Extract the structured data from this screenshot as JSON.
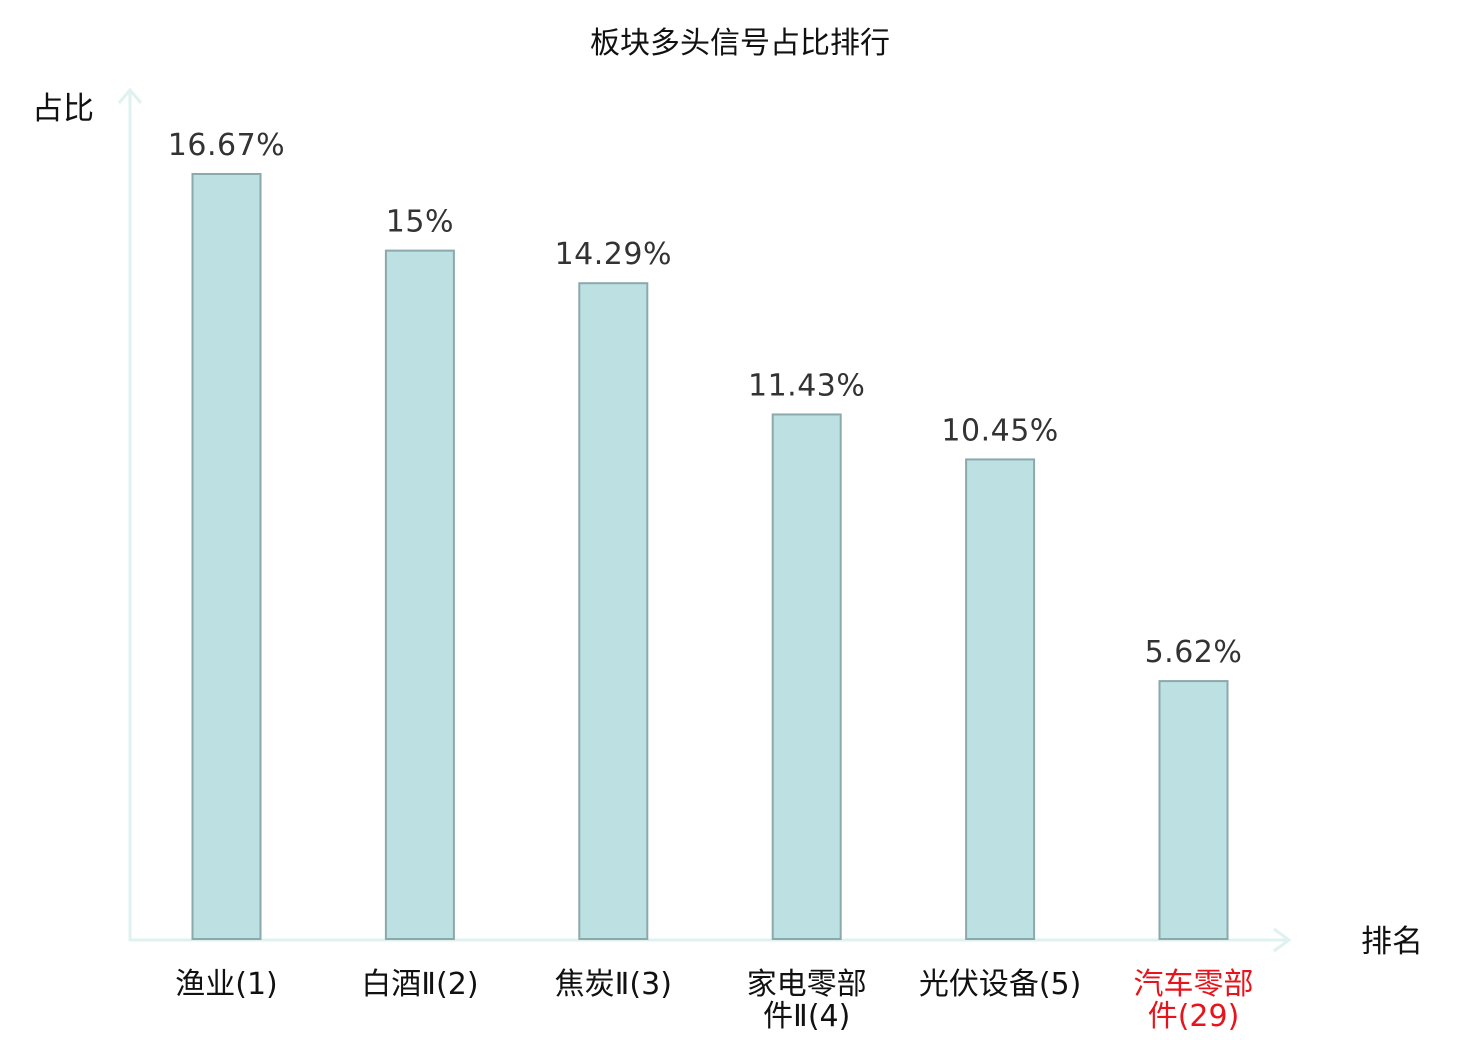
{
  "chart_data": {
    "type": "bar",
    "title": "板块多头信号占比排行",
    "ylabel": "占比",
    "xlabel": "排名",
    "ylim": [
      0,
      18.5
    ],
    "grid": false,
    "legend": "none",
    "categories": [
      {
        "lines": [
          "渔业(1)"
        ],
        "highlight": false
      },
      {
        "lines": [
          "白酒Ⅱ(2)"
        ],
        "highlight": false
      },
      {
        "lines": [
          "焦炭Ⅱ(3)"
        ],
        "highlight": false
      },
      {
        "lines": [
          "家电零部",
          "件Ⅱ(4)"
        ],
        "highlight": false
      },
      {
        "lines": [
          "光伏设备(5)"
        ],
        "highlight": false
      },
      {
        "lines": [
          "汽车零部",
          "件(29)"
        ],
        "highlight": true
      }
    ],
    "values": [
      16.67,
      15,
      14.29,
      11.43,
      10.45,
      5.62
    ],
    "value_labels": [
      "16.67%",
      "15%",
      "14.29%",
      "11.43%",
      "10.45%",
      "5.62%"
    ]
  },
  "colors": {
    "bar_fill": "#bde0e3",
    "bar_stroke": "#8aa9ab",
    "axis": "#dff2f0",
    "highlight_text": "#e8141c",
    "text": "#111111"
  }
}
